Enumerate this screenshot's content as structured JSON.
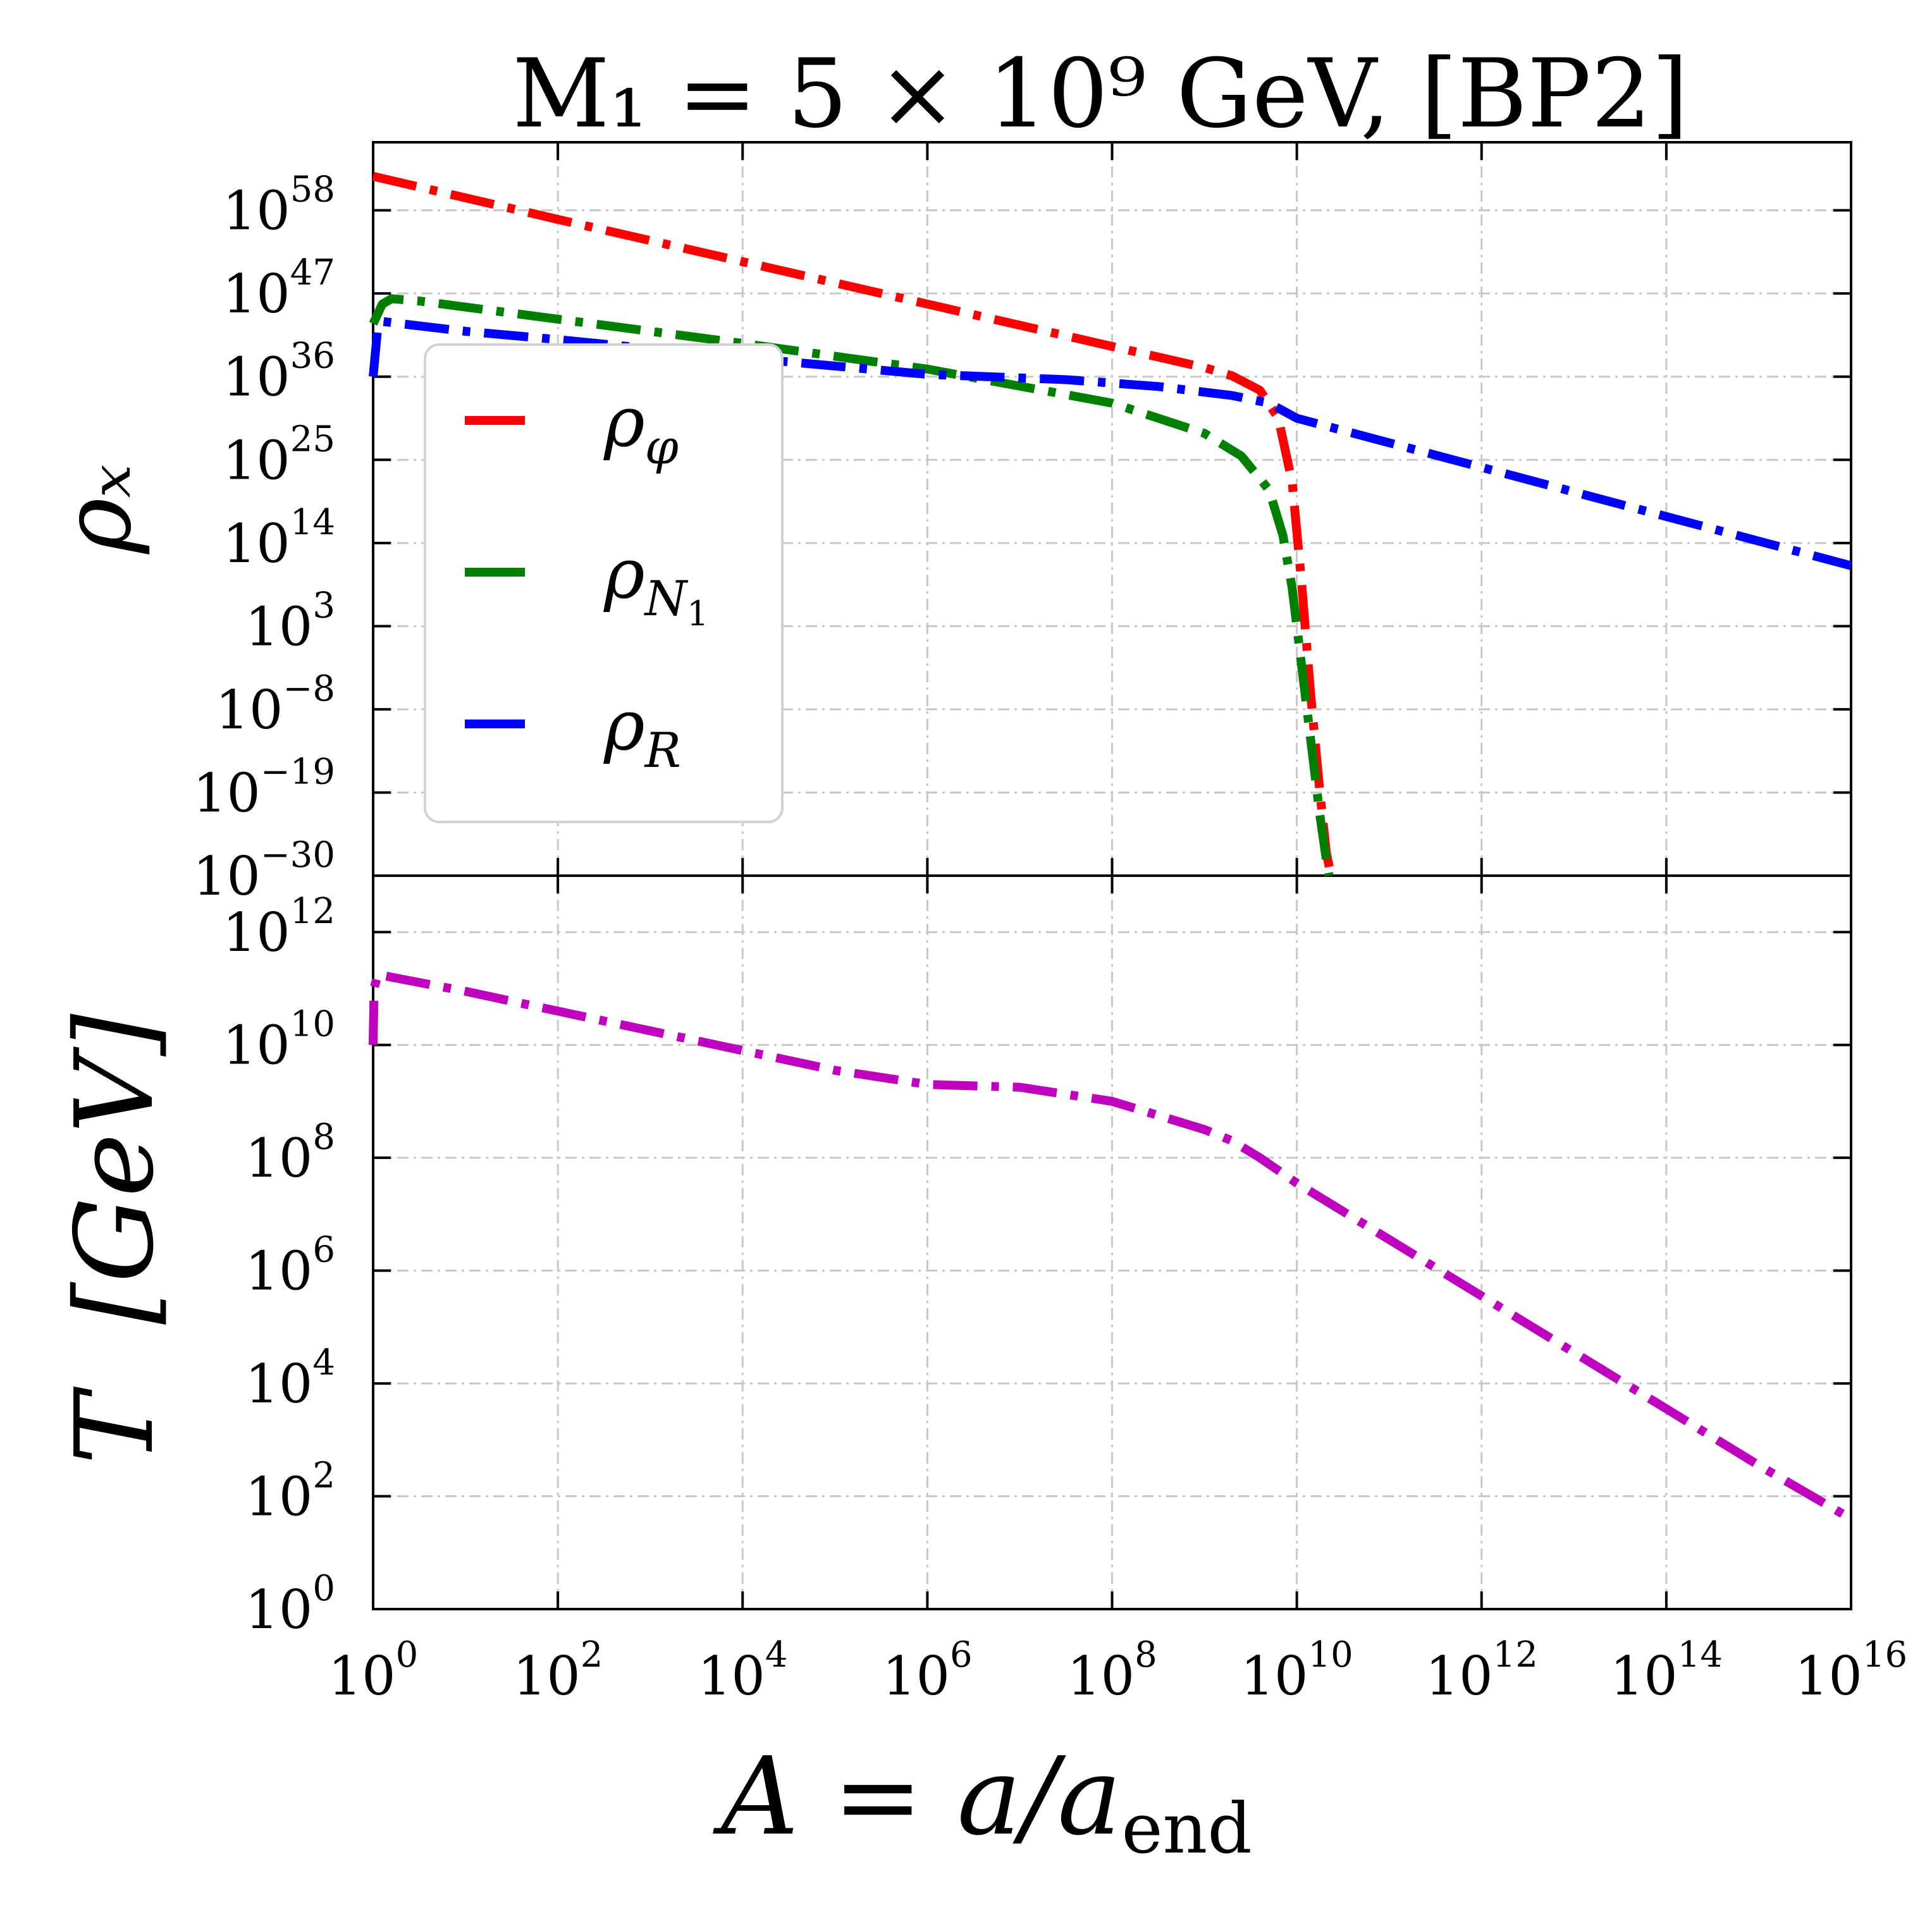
{
  "chart_data": [
    {
      "type": "line",
      "panel": "top",
      "title": "M₁ = 5 × 10⁹ GeV, [BP2]",
      "xlabel": "",
      "ylabel": "ρₓ",
      "xscale": "log",
      "yscale": "log",
      "xlim_log10": [
        0,
        16
      ],
      "ylim_log10": [
        -30,
        67
      ],
      "ytick_exponents": [
        "58",
        "47",
        "36",
        "25",
        "14",
        "3",
        "−8",
        "−19",
        "−30"
      ],
      "ytick_values_log10": [
        58,
        47,
        36,
        25,
        14,
        3,
        -8,
        -19,
        -30
      ],
      "grid": true,
      "legend_position": "upper-left",
      "series": [
        {
          "name": "ρ_φ",
          "legend_main": "ρ",
          "legend_sub": "φ",
          "color": "#ff0000",
          "log10_x": [
            0,
            2,
            4,
            6,
            8,
            9,
            9.3,
            9.6,
            9.8,
            9.95,
            10.05,
            10.15,
            10.25,
            10.32,
            10.37
          ],
          "log10_y": [
            62.5,
            56.8,
            51.2,
            45.6,
            40.0,
            37.2,
            36.1,
            34.2,
            30.5,
            22.0,
            9.0,
            -6.0,
            -19.0,
            -27.0,
            -30.0
          ]
        },
        {
          "name": "ρ_N1",
          "legend_main": "ρ",
          "legend_sub": "N",
          "legend_subsub": "1",
          "color": "#008000",
          "log10_x": [
            0,
            0.1,
            0.2,
            0.5,
            1,
            2,
            4,
            6,
            8,
            9,
            9.4,
            9.7,
            9.85,
            9.95,
            10.05,
            10.15,
            10.25,
            10.32,
            10.35
          ],
          "log10_y": [
            43.0,
            45.6,
            46.3,
            46.0,
            45.2,
            43.6,
            40.4,
            37.0,
            32.5,
            28.5,
            25.5,
            21.0,
            15.0,
            8.0,
            -2.0,
            -12.0,
            -22.0,
            -28.0,
            -30.0
          ]
        },
        {
          "name": "ρ_R",
          "legend_main": "ρ",
          "legend_sub": "R",
          "color": "#0000ff",
          "log10_x": [
            0,
            0.05,
            0.1,
            0.3,
            1,
            2,
            4,
            6,
            7.5,
            8.5,
            9.3,
            9.7,
            10,
            12,
            14,
            16
          ],
          "log10_y": [
            36.0,
            42.5,
            43.3,
            43.0,
            42.0,
            40.9,
            38.5,
            36.3,
            35.6,
            34.7,
            33.5,
            32.5,
            30.5,
            24.0,
            17.5,
            11.0
          ]
        }
      ]
    },
    {
      "type": "line",
      "panel": "bottom",
      "xlabel": "A = a/a_end",
      "xlabel_main": "A = a/a",
      "xlabel_sub": "end",
      "ylabel": "T  [GeV]",
      "xscale": "log",
      "yscale": "log",
      "xlim_log10": [
        0,
        16
      ],
      "ylim_log10": [
        0,
        13
      ],
      "xtick_exponents": [
        "0",
        "2",
        "4",
        "6",
        "8",
        "10",
        "12",
        "14",
        "16"
      ],
      "xtick_values_log10": [
        0,
        2,
        4,
        6,
        8,
        10,
        12,
        14,
        16
      ],
      "ytick_exponents": [
        "12",
        "10",
        "8",
        "6",
        "4",
        "2",
        "0"
      ],
      "ytick_values_log10": [
        12,
        10,
        8,
        6,
        4,
        2,
        0
      ],
      "grid": true,
      "series": [
        {
          "name": "T",
          "color": "#bf00bf",
          "log10_x": [
            0,
            0.01,
            0.05,
            0.2,
            1,
            2,
            3,
            4,
            5,
            6,
            7,
            8,
            8.5,
            9,
            9.3,
            9.6,
            10,
            11,
            12,
            13,
            14,
            15,
            16
          ],
          "log10_y": [
            10.0,
            11.0,
            11.25,
            11.2,
            10.95,
            10.6,
            10.25,
            9.9,
            9.55,
            9.3,
            9.25,
            9.0,
            8.75,
            8.5,
            8.3,
            8.0,
            7.55,
            6.55,
            5.55,
            4.55,
            3.55,
            2.55,
            1.6
          ]
        }
      ]
    }
  ]
}
